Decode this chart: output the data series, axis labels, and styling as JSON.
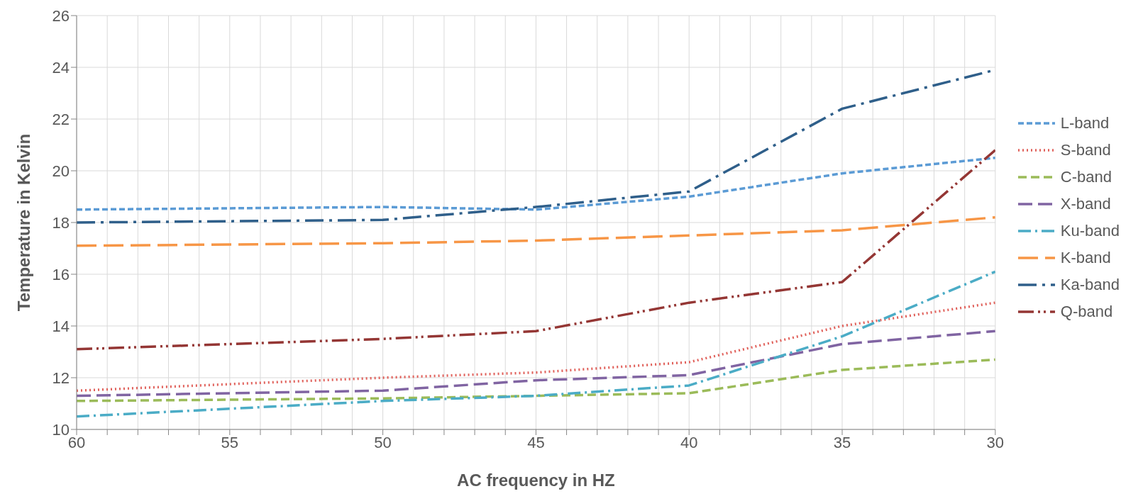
{
  "chart_data": {
    "type": "line",
    "xlabel": "AC frequency in HZ",
    "ylabel": "Temperature in Kelvin",
    "x": [
      60,
      50,
      45,
      40,
      35,
      30
    ],
    "xlim": [
      60,
      30
    ],
    "xticks": [
      60,
      {
        "value": 59,
        "label": null
      },
      {
        "value": 58,
        "label": null
      },
      {
        "value": 57,
        "label": null
      },
      {
        "value": 56,
        "label": null
      },
      55,
      {
        "value": 54,
        "label": null
      },
      {
        "value": 53,
        "label": null
      },
      {
        "value": 52,
        "label": null
      },
      {
        "value": 51,
        "label": null
      },
      50,
      {
        "value": 49,
        "label": null
      },
      {
        "value": 48,
        "label": null
      },
      {
        "value": 47,
        "label": null
      },
      {
        "value": 46,
        "label": null
      },
      45,
      {
        "value": 44,
        "label": null
      },
      {
        "value": 43,
        "label": null
      },
      {
        "value": 42,
        "label": null
      },
      {
        "value": 41,
        "label": null
      },
      40,
      {
        "value": 39,
        "label": null
      },
      {
        "value": 38,
        "label": null
      },
      {
        "value": 37,
        "label": null
      },
      {
        "value": 36,
        "label": null
      },
      35,
      {
        "value": 34,
        "label": null
      },
      {
        "value": 33,
        "label": null
      },
      {
        "value": 32,
        "label": null
      },
      {
        "value": 31,
        "label": null
      },
      30
    ],
    "ylim": [
      10,
      26
    ],
    "yticks": [
      10,
      12,
      14,
      16,
      18,
      20,
      22,
      24,
      26
    ],
    "grid": true,
    "legend": "right",
    "marker": "none",
    "series": [
      {
        "name": "L-band",
        "color": "#5b9bd5",
        "line_style": "dashed",
        "values": [
          18.5,
          18.6,
          18.5,
          19.0,
          19.9,
          20.5
        ]
      },
      {
        "name": "S-band",
        "color": "#e0605a",
        "line_style": "dotted",
        "values": [
          11.5,
          12.0,
          12.2,
          12.6,
          14.0,
          14.9
        ]
      },
      {
        "name": "C-band",
        "color": "#9bbb59",
        "line_style": "dashed",
        "values": [
          11.1,
          11.2,
          11.3,
          11.4,
          12.3,
          12.7
        ]
      },
      {
        "name": "X-band",
        "color": "#8064a2",
        "line_style": "dashed",
        "values": [
          11.3,
          11.5,
          11.9,
          12.1,
          13.3,
          13.8
        ]
      },
      {
        "name": "Ku-band",
        "color": "#4bacc6",
        "line_style": "dashed",
        "values": [
          10.5,
          11.1,
          11.3,
          11.7,
          13.6,
          16.1
        ]
      },
      {
        "name": "K-band",
        "color": "#f79646",
        "line_style": "dashed",
        "values": [
          17.1,
          17.2,
          17.3,
          17.5,
          17.7,
          18.2
        ]
      },
      {
        "name": "Ka-band",
        "color": "#2f5f8a",
        "line_style": "dashed",
        "values": [
          18.0,
          18.1,
          18.6,
          19.2,
          22.4,
          23.9
        ]
      },
      {
        "name": "Q-band",
        "color": "#943634",
        "line_style": "dashed",
        "values": [
          13.1,
          13.5,
          13.8,
          14.9,
          15.7,
          20.8
        ]
      }
    ]
  }
}
